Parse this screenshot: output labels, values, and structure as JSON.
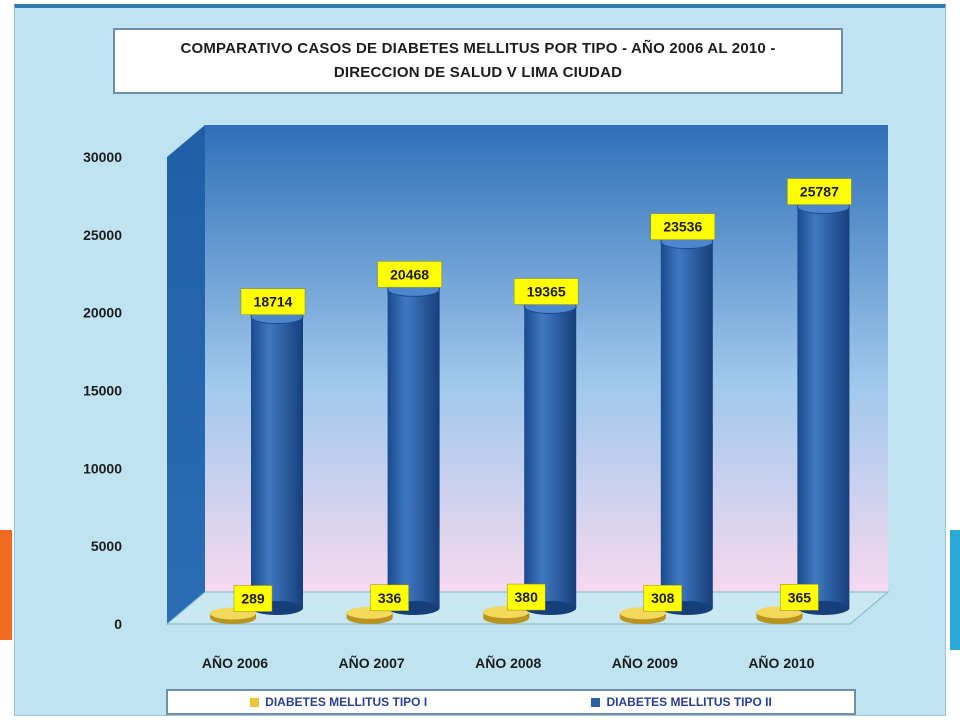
{
  "chart_data": {
    "type": "bar",
    "title_lines": [
      "COMPARATIVO CASOS DE DIABETES MELLITUS POR TIPO - AÑO 2006  AL 2010 -",
      "DIRECCION DE SALUD V LIMA CIUDAD"
    ],
    "categories": [
      "AÑO 2006",
      "AÑO 2007",
      "AÑO 2008",
      "AÑO 2009",
      "AÑO 2010"
    ],
    "series": [
      {
        "name": "DIABETES MELLITUS TIPO I",
        "values": [
          289,
          336,
          380,
          308,
          365
        ],
        "color": "#e8c53a"
      },
      {
        "name": "DIABETES MELLITUS TIPO II",
        "values": [
          18714,
          20468,
          19365,
          23536,
          25787
        ],
        "color": "#2b5fa8"
      }
    ],
    "yticks": [
      "0",
      "5000",
      "10000",
      "15000",
      "20000",
      "25000",
      "30000"
    ],
    "ylim": [
      0,
      30000
    ],
    "legend_position": "bottom",
    "data_label_color": "#ffff00"
  }
}
